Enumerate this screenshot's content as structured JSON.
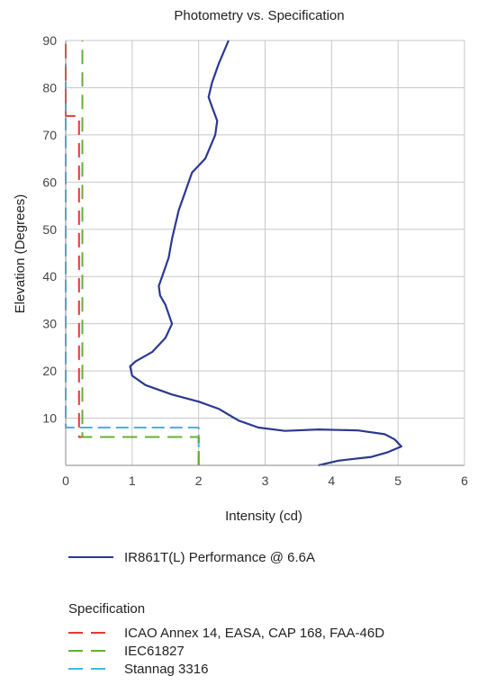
{
  "chart_data": {
    "type": "line",
    "title": "Photometry vs. Specification",
    "xlabel": "Intensity (cd)",
    "ylabel": "Elevation (Degrees)",
    "xlim": [
      0,
      6
    ],
    "ylim": [
      0,
      90
    ],
    "x_ticks": [
      "0",
      "1",
      "2",
      "3",
      "4",
      "5",
      "6"
    ],
    "y_ticks": [
      "10",
      "20",
      "30",
      "40",
      "50",
      "60",
      "70",
      "80",
      "90"
    ],
    "grid": true,
    "series": [
      {
        "name": "IR861T(L) Performance @ 6.6A",
        "color": "#2b3990",
        "dash": "solid",
        "points": [
          [
            3.8,
            0
          ],
          [
            4.1,
            1
          ],
          [
            4.6,
            1.8
          ],
          [
            4.85,
            2.8
          ],
          [
            5.05,
            4
          ],
          [
            4.95,
            5.5
          ],
          [
            4.8,
            6.6
          ],
          [
            4.4,
            7.4
          ],
          [
            3.8,
            7.6
          ],
          [
            3.3,
            7.3
          ],
          [
            2.9,
            8
          ],
          [
            2.6,
            9.5
          ],
          [
            2.3,
            12
          ],
          [
            2.0,
            13.5
          ],
          [
            1.6,
            15
          ],
          [
            1.2,
            17
          ],
          [
            1.0,
            19
          ],
          [
            0.97,
            21
          ],
          [
            1.05,
            22
          ],
          [
            1.3,
            24
          ],
          [
            1.5,
            27
          ],
          [
            1.6,
            30
          ],
          [
            1.5,
            34
          ],
          [
            1.42,
            36
          ],
          [
            1.4,
            38
          ],
          [
            1.45,
            40
          ],
          [
            1.55,
            44
          ],
          [
            1.6,
            48
          ],
          [
            1.7,
            54
          ],
          [
            1.8,
            58
          ],
          [
            1.9,
            62
          ],
          [
            2.1,
            65
          ],
          [
            2.25,
            70
          ],
          [
            2.28,
            73
          ],
          [
            2.2,
            76
          ],
          [
            2.15,
            78
          ],
          [
            2.2,
            81
          ],
          [
            2.3,
            85
          ],
          [
            2.45,
            90
          ]
        ]
      },
      {
        "name": "ICAO Annex 14, EASA, CAP 168, FAA-46D",
        "color": "#e53935",
        "dash": "dashed",
        "points": [
          [
            2.0,
            0
          ],
          [
            2.0,
            6
          ],
          [
            0.2,
            6
          ],
          [
            0.2,
            74
          ],
          [
            0.0,
            74
          ],
          [
            0.0,
            90
          ]
        ]
      },
      {
        "name": "IEC61827",
        "color": "#66b032",
        "dash": "dashed",
        "points": [
          [
            2.0,
            0
          ],
          [
            2.0,
            6
          ],
          [
            0.25,
            6
          ],
          [
            0.25,
            90
          ]
        ]
      },
      {
        "name": "Stannag 3316",
        "color": "#41b6e6",
        "dash": "dashed",
        "points": [
          [
            2.0,
            0
          ],
          [
            2.0,
            8
          ],
          [
            0.0,
            8
          ],
          [
            0.0,
            90
          ]
        ]
      }
    ],
    "legend_heading": "Specification"
  }
}
